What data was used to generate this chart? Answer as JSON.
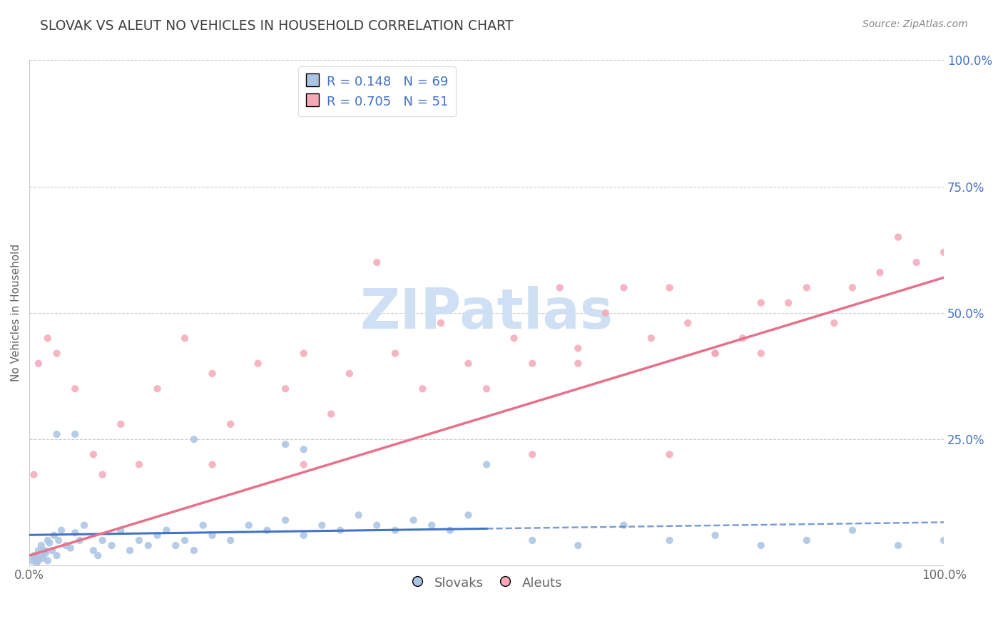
{
  "title": "SLOVAK VS ALEUT NO VEHICLES IN HOUSEHOLD CORRELATION CHART",
  "source": "Source: ZipAtlas.com",
  "ylabel": "No Vehicles in Household",
  "xlim": [
    0,
    100
  ],
  "ylim": [
    0,
    100
  ],
  "legend_slovak_R": "0.148",
  "legend_slovak_N": "69",
  "legend_aleut_R": "0.705",
  "legend_aleut_N": "51",
  "slovak_color": "#aac4e2",
  "aleut_color": "#f4a8b8",
  "slovak_line_color": "#4472c4",
  "aleut_line_color": "#e8708a",
  "title_color": "#404040",
  "label_color": "#4472c4",
  "tick_label_color": "#666666",
  "watermark": "ZIPatlas",
  "watermark_color": "#d0e0f4",
  "grid_color": "#cccccc",
  "source_color": "#888888",
  "slovak_x": [
    0.3,
    0.5,
    0.7,
    0.8,
    1.0,
    1.0,
    1.2,
    1.3,
    1.5,
    1.7,
    1.8,
    2.0,
    2.0,
    2.2,
    2.5,
    2.7,
    3.0,
    3.2,
    3.5,
    4.0,
    4.5,
    5.0,
    5.5,
    6.0,
    7.0,
    7.5,
    8.0,
    9.0,
    10.0,
    11.0,
    12.0,
    13.0,
    14.0,
    15.0,
    16.0,
    17.0,
    18.0,
    19.0,
    20.0,
    22.0,
    24.0,
    26.0,
    28.0,
    30.0,
    32.0,
    34.0,
    36.0,
    38.0,
    40.0,
    42.0,
    44.0,
    46.0,
    48.0,
    50.0,
    55.0,
    60.0,
    65.0,
    70.0,
    75.0,
    80.0,
    85.0,
    90.0,
    95.0,
    100.0,
    28.0,
    30.0,
    18.0,
    5.0,
    3.0
  ],
  "slovak_y": [
    1.0,
    2.0,
    1.5,
    0.5,
    3.0,
    1.0,
    2.0,
    4.0,
    1.5,
    3.0,
    2.5,
    5.0,
    1.0,
    4.5,
    3.0,
    6.0,
    2.0,
    5.0,
    7.0,
    4.0,
    3.5,
    6.5,
    5.0,
    8.0,
    3.0,
    2.0,
    5.0,
    4.0,
    7.0,
    3.0,
    5.0,
    4.0,
    6.0,
    7.0,
    4.0,
    5.0,
    3.0,
    8.0,
    6.0,
    5.0,
    8.0,
    7.0,
    9.0,
    6.0,
    8.0,
    7.0,
    10.0,
    8.0,
    7.0,
    9.0,
    8.0,
    7.0,
    10.0,
    20.0,
    5.0,
    4.0,
    8.0,
    5.0,
    6.0,
    4.0,
    5.0,
    7.0,
    4.0,
    5.0,
    24.0,
    23.0,
    25.0,
    26.0,
    26.0
  ],
  "aleut_x": [
    0.5,
    1.0,
    2.0,
    3.0,
    5.0,
    7.0,
    8.0,
    10.0,
    12.0,
    14.0,
    17.0,
    20.0,
    22.0,
    25.0,
    28.0,
    30.0,
    33.0,
    35.0,
    38.0,
    40.0,
    43.0,
    45.0,
    48.0,
    50.0,
    53.0,
    55.0,
    58.0,
    60.0,
    63.0,
    65.0,
    68.0,
    70.0,
    72.0,
    75.0,
    78.0,
    80.0,
    83.0,
    85.0,
    88.0,
    90.0,
    93.0,
    95.0,
    97.0,
    100.0,
    30.0,
    55.0,
    60.0,
    70.0,
    75.0,
    80.0,
    20.0
  ],
  "aleut_y": [
    18.0,
    40.0,
    45.0,
    42.0,
    35.0,
    22.0,
    18.0,
    28.0,
    20.0,
    35.0,
    45.0,
    38.0,
    28.0,
    40.0,
    35.0,
    42.0,
    30.0,
    38.0,
    60.0,
    42.0,
    35.0,
    48.0,
    40.0,
    35.0,
    45.0,
    40.0,
    55.0,
    40.0,
    50.0,
    55.0,
    45.0,
    55.0,
    48.0,
    42.0,
    45.0,
    52.0,
    52.0,
    55.0,
    48.0,
    55.0,
    58.0,
    65.0,
    60.0,
    62.0,
    20.0,
    22.0,
    43.0,
    22.0,
    42.0,
    42.0,
    20.0
  ]
}
